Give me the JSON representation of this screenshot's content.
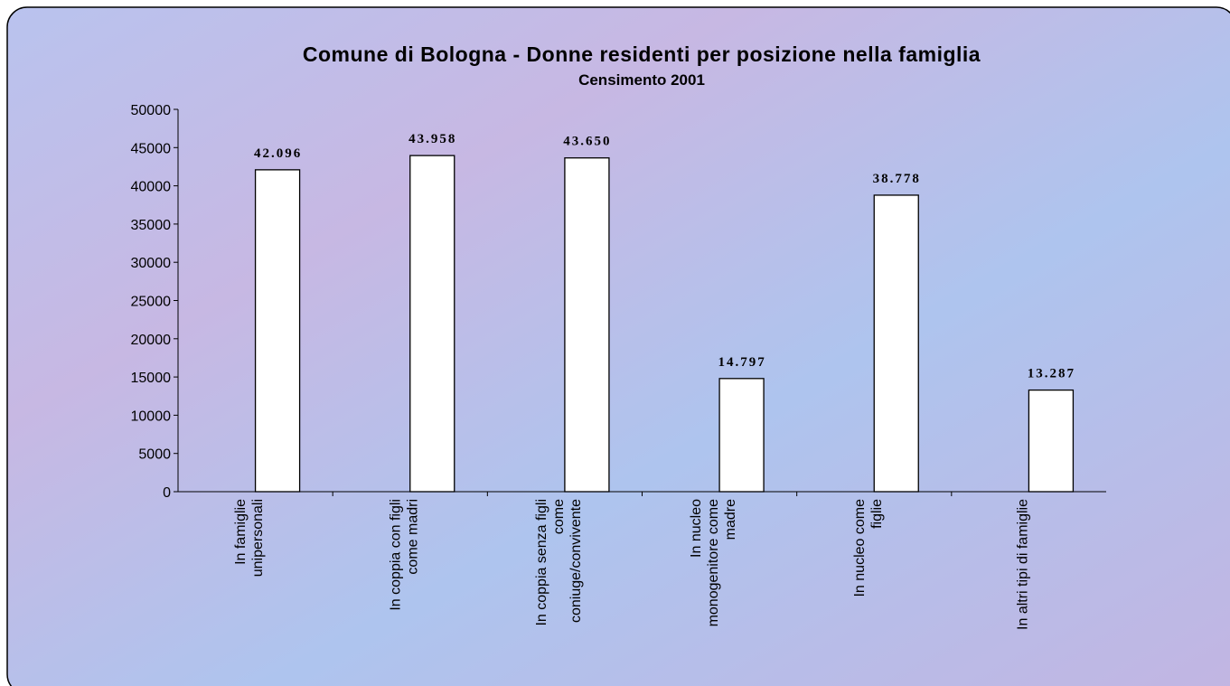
{
  "chart_data": {
    "type": "bar",
    "title": "Comune di Bologna - Donne residenti per posizione nella famiglia",
    "subtitle": "Censimento 2001",
    "categories": [
      "In famiglie\nunipersonali",
      "In coppia con figli\ncome madri",
      "In coppia senza figli\ncome\nconiuge/convivente",
      "In nucleo\nmonogenitore come\nmadre",
      "In nucleo come\nfiglie",
      "In altri tipi di famiglie"
    ],
    "values": [
      42096,
      43958,
      43650,
      14797,
      38778,
      13287
    ],
    "value_labels": [
      "42.096",
      "43.958",
      "43.650",
      "14.797",
      "38.778",
      "13.287"
    ],
    "color": "#ffffff",
    "ylim": [
      0,
      50000
    ],
    "yticks": [
      0,
      5000,
      10000,
      15000,
      20000,
      25000,
      30000,
      35000,
      40000,
      45000,
      50000
    ],
    "grid": false
  }
}
